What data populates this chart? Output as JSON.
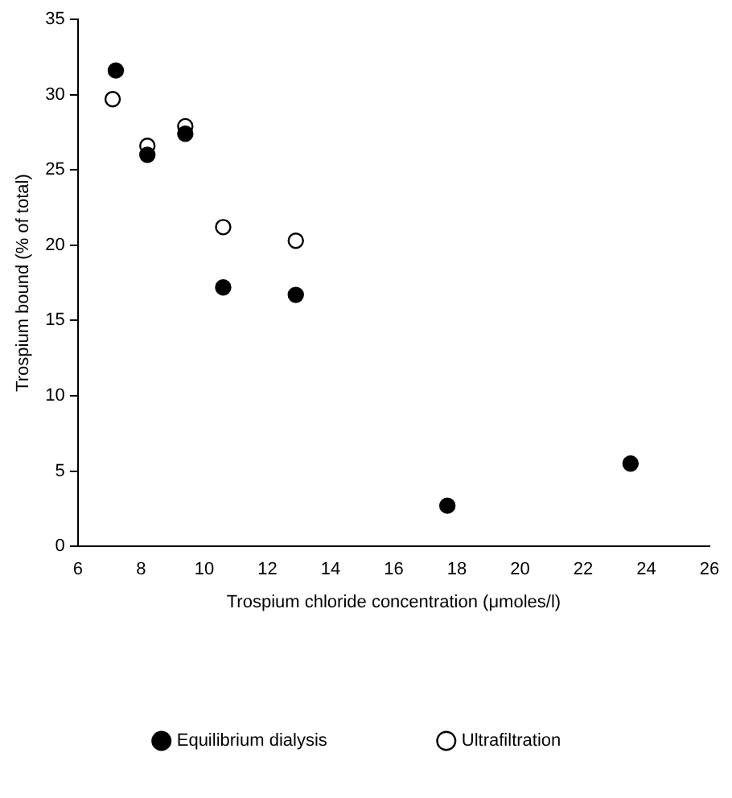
{
  "chart_data": {
    "type": "scatter",
    "xlabel": "Trospium chloride concentration (μmoles/l)",
    "ylabel": "Trospium bound (% of total)",
    "xlim": [
      6,
      26
    ],
    "xticks": [
      6,
      8,
      10,
      12,
      14,
      16,
      18,
      20,
      22,
      24,
      26
    ],
    "ylim": [
      0,
      35
    ],
    "yticks": [
      0,
      5,
      10,
      15,
      20,
      25,
      30,
      35
    ],
    "series": [
      {
        "name": "Equilibrium dialysis",
        "color": "#000000",
        "x": [
          7.2,
          8.2,
          9.4,
          10.6,
          12.9,
          17.7,
          23.5
        ],
        "values": [
          31.6,
          26.0,
          27.4,
          17.2,
          16.7,
          2.7,
          5.5
        ]
      },
      {
        "name": "Ultrafiltration",
        "color": "#ffffff",
        "x": [
          7.1,
          8.2,
          9.4,
          10.6,
          12.9
        ],
        "values": [
          29.7,
          26.6,
          27.9,
          21.2,
          20.3
        ]
      }
    ],
    "marker": "circle",
    "grid": false,
    "legend": "bottom"
  }
}
